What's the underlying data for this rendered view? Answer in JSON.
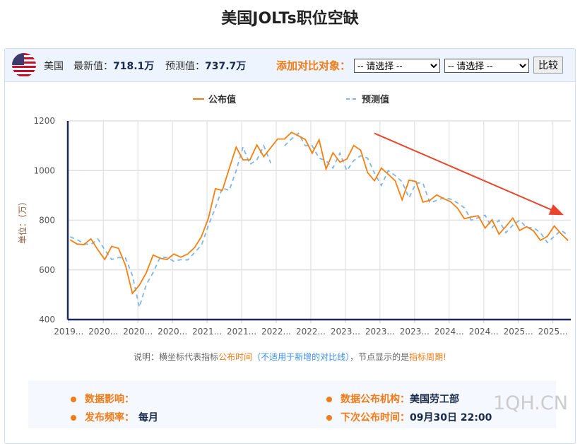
{
  "title": "美国JOLTs职位空缺",
  "header": {
    "country": "美国",
    "latest_label": "最新值：",
    "latest_value": "718.1万",
    "forecast_label": "预测值：",
    "forecast_value": "737.7万",
    "compare_label": "添加对比对象：",
    "select1": "-- 请选择 --",
    "select2": "-- 请选择 --",
    "compare_button": "比较",
    "flag_icon": "us-flag-icon"
  },
  "note": {
    "p1": "说明：横坐标代表指标",
    "p2": "公布时间",
    "p3": "（不适用于新增的对比线）",
    "p4": "，节点显示的是",
    "p5": "指标周期",
    "p6": "!"
  },
  "info": {
    "impact_label": "数据影响：",
    "impact_value": "",
    "org_label": "数据公布机构：",
    "org_value": "美国劳工部",
    "freq_label": "发布频率：",
    "freq_value": "每月",
    "next_label": "下次公布时间：",
    "next_value": "09月30日 22:00"
  },
  "watermark": "1QH.CN",
  "chart_data": {
    "type": "line",
    "ylabel": "单位：（万）",
    "ylim": [
      400,
      1200
    ],
    "yticks": [
      400,
      600,
      800,
      1000,
      1200
    ],
    "grid": true,
    "legend_position": "top",
    "xtick_labels": [
      "2019...",
      "2020...",
      "2020...",
      "2020...",
      "2021...",
      "2021...",
      "2022...",
      "2022...",
      "2023...",
      "2023...",
      "2023...",
      "2024...",
      "2024...",
      "2025...",
      "2025..."
    ],
    "colors": {
      "actual": "#f5800f",
      "forecast": "#7fb6ea",
      "trend_arrow": "#e8452c"
    },
    "series": [
      {
        "name": "公布值",
        "values": [
          721,
          704,
          702,
          725,
          681,
          642,
          695,
          687,
          619,
          505,
          538,
          588,
          660,
          647,
          642,
          664,
          651,
          664,
          690,
          735,
          809,
          927,
          920,
          1008,
          1094,
          1043,
          1043,
          1103,
          1056,
          1092,
          1127,
          1127,
          1154,
          1140,
          1125,
          1070,
          1124,
          1006,
          1072,
          1034,
          1046,
          1101,
          1082,
          992,
          959,
          1010,
          985,
          959,
          882,
          961,
          956,
          873,
          880,
          902,
          887,
          875,
          849,
          806,
          813,
          818,
          768,
          802,
          744,
          775,
          809,
          759,
          774,
          757,
          719,
          735,
          777,
          745,
          718.1
        ]
      },
      {
        "name": "预测值",
        "values": [
          733,
          722,
          705,
          702,
          725,
          681,
          642,
          650,
          648,
          578,
          450,
          540,
          590,
          650,
          650,
          635,
          641,
          640,
          670,
          700,
          780,
          850,
          930,
          920,
          1000,
          1095,
          1025,
          1043,
          1100,
          1030,
          null,
          1100,
          1127,
          1150,
          1100,
          1100,
          1050,
          1040,
          1010,
          1070,
          1000,
          1040,
          1060,
          1050,
          990,
          940,
          1000,
          980,
          955,
          890,
          950,
          950,
          870,
          880,
          890,
          885,
          870,
          850,
          800,
          810,
          820,
          770,
          800,
          750,
          780,
          800,
          770,
          770,
          750,
          710,
          735,
          760,
          737.7
        ]
      }
    ],
    "annotations": [
      {
        "type": "arrow",
        "desc": "downtrend",
        "from": [
          44,
          1150
        ],
        "to": [
          71,
          825
        ]
      }
    ]
  }
}
